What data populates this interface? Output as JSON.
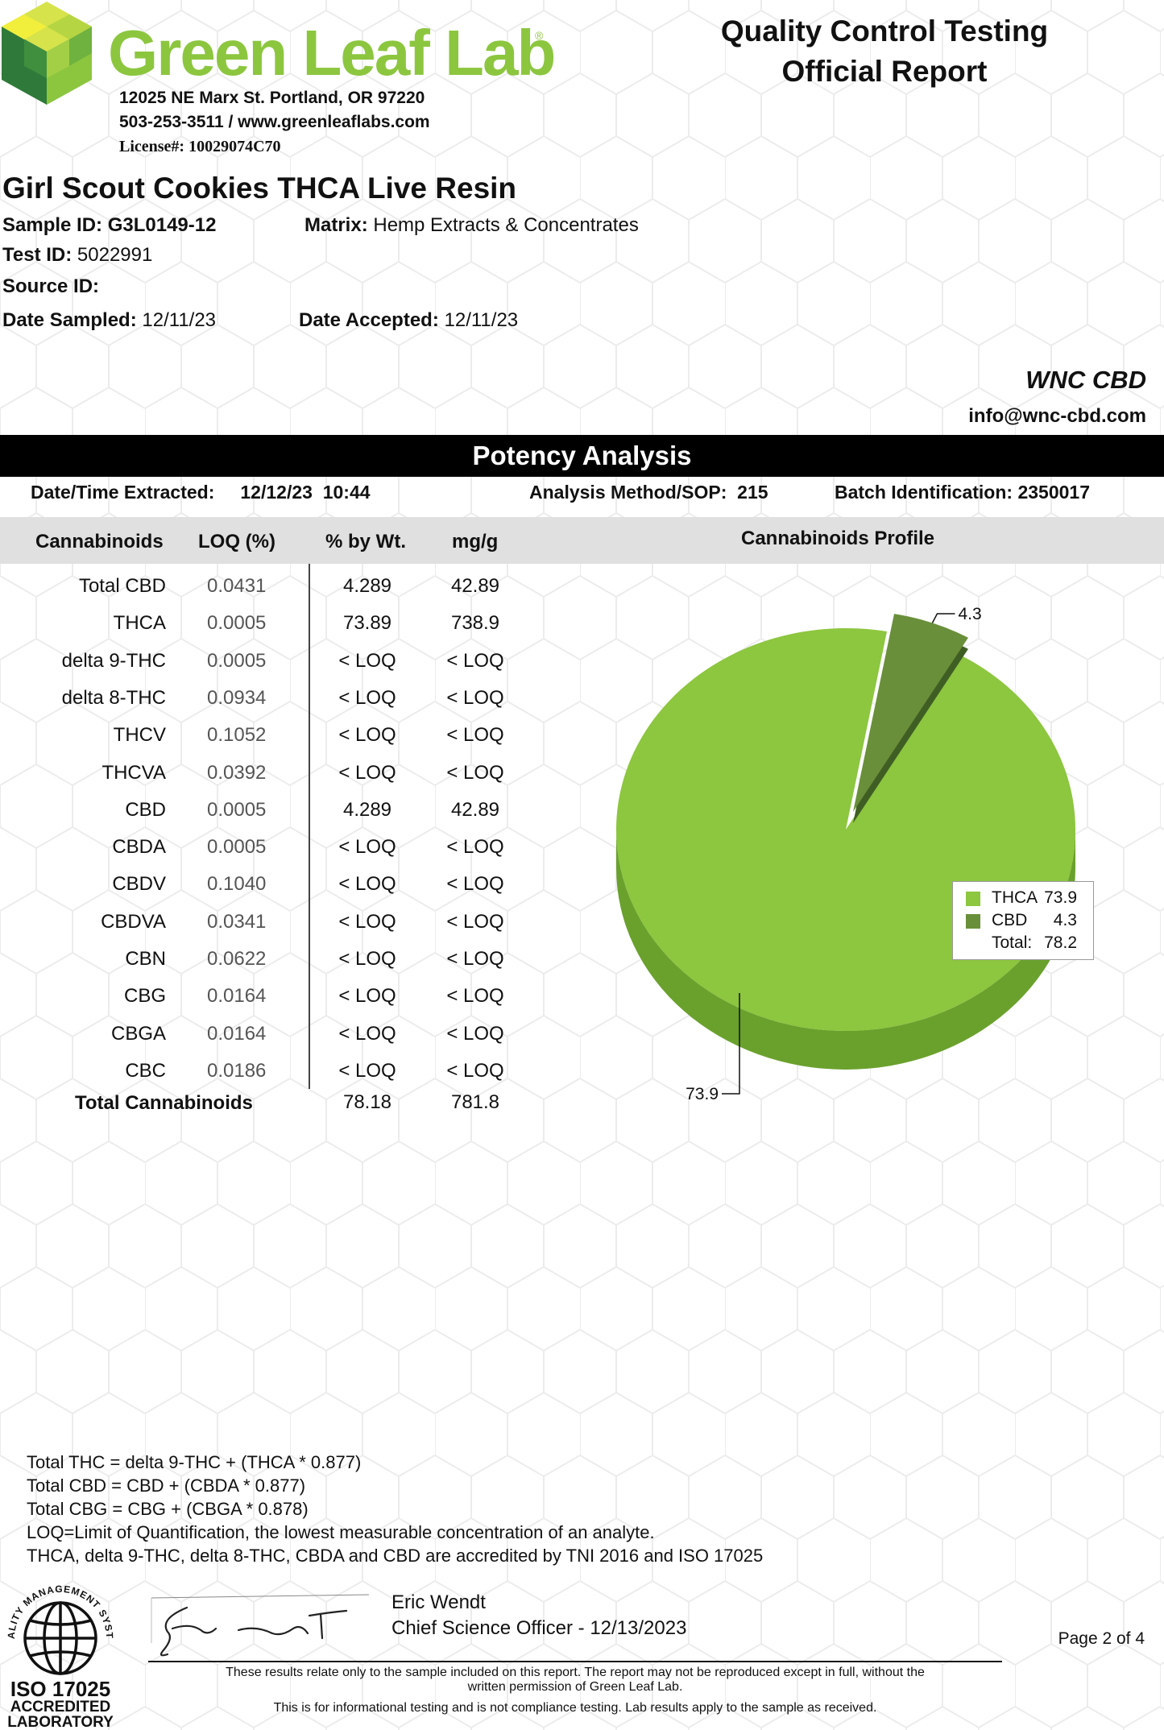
{
  "lab": {
    "name": "Green Leaf Lab",
    "address": "12025 NE Marx St. Portland, OR 97220",
    "contact": "503-253-3511 / www.greenleaflabs.com",
    "license": "License#: 10029074C70"
  },
  "report": {
    "title_line1": "Quality Control Testing",
    "title_line2": "Official Report"
  },
  "sample": {
    "product": "Girl Scout Cookies THCA Live Resin",
    "sample_id_label": "Sample ID:",
    "sample_id": "G3L0149-12",
    "matrix_label": "Matrix:",
    "matrix": "Hemp Extracts & Concentrates",
    "test_id_label": "Test ID:",
    "test_id": "5022991",
    "source_id_label": "Source ID:",
    "source_id": "",
    "date_sampled_label": "Date Sampled:",
    "date_sampled": "12/11/23",
    "date_accepted_label": "Date Accepted:",
    "date_accepted": "12/11/23"
  },
  "client": {
    "name": "WNC CBD",
    "email": "info@wnc-cbd.com"
  },
  "potency": {
    "section_title": "Potency Analysis",
    "extracted_label": "Date/Time Extracted:",
    "extracted_date": "12/12/23",
    "extracted_time": "10:44",
    "method_label": "Analysis Method/SOP:",
    "method": "215",
    "batch_label": "Batch Identification:",
    "batch": "2350017",
    "headers": {
      "cannabinoids": "Cannabinoids",
      "loq": "LOQ (%)",
      "pct": "% by Wt.",
      "mgg": "mg/g",
      "profile": "Cannabinoids Profile"
    },
    "rows": [
      {
        "name": "Total CBD",
        "loq": "0.0431",
        "pct": "4.289",
        "mgg": "42.89"
      },
      {
        "name": "THCA",
        "loq": "0.0005",
        "pct": "73.89",
        "mgg": "738.9"
      },
      {
        "name": "delta 9-THC",
        "loq": "0.0005",
        "pct": "< LOQ",
        "mgg": "< LOQ"
      },
      {
        "name": "delta 8-THC",
        "loq": "0.0934",
        "pct": "< LOQ",
        "mgg": "< LOQ"
      },
      {
        "name": "THCV",
        "loq": "0.1052",
        "pct": "< LOQ",
        "mgg": "< LOQ"
      },
      {
        "name": "THCVA",
        "loq": "0.0392",
        "pct": "< LOQ",
        "mgg": "< LOQ"
      },
      {
        "name": "CBD",
        "loq": "0.0005",
        "pct": "4.289",
        "mgg": "42.89"
      },
      {
        "name": "CBDA",
        "loq": "0.0005",
        "pct": "< LOQ",
        "mgg": "< LOQ"
      },
      {
        "name": "CBDV",
        "loq": "0.1040",
        "pct": "< LOQ",
        "mgg": "< LOQ"
      },
      {
        "name": "CBDVA",
        "loq": "0.0341",
        "pct": "< LOQ",
        "mgg": "< LOQ"
      },
      {
        "name": "CBN",
        "loq": "0.0622",
        "pct": "< LOQ",
        "mgg": "< LOQ"
      },
      {
        "name": "CBG",
        "loq": "0.0164",
        "pct": "< LOQ",
        "mgg": "< LOQ"
      },
      {
        "name": "CBGA",
        "loq": "0.0164",
        "pct": "< LOQ",
        "mgg": "< LOQ"
      },
      {
        "name": "CBC",
        "loq": "0.0186",
        "pct": "< LOQ",
        "mgg": "< LOQ"
      }
    ],
    "total": {
      "name": "Total Cannabinoids",
      "pct": "78.18",
      "mgg": "781.8"
    }
  },
  "chart_data": {
    "type": "pie",
    "title": "Cannabinoids Profile",
    "categories": [
      "THCA",
      "CBD"
    ],
    "values": [
      73.9,
      4.3
    ],
    "data_labels": [
      "73.9",
      "4.3"
    ],
    "total_label": "Total:",
    "total": 78.2,
    "legend_position": "right",
    "colors": [
      "#8dc63f",
      "#6a8f3a"
    ]
  },
  "notes": [
    "Total THC =  delta 9-THC + (THCA * 0.877)",
    "Total CBD =  CBD + (CBDA * 0.877)",
    "Total CBG = CBG + (CBGA * 0.878)",
    "LOQ=Limit of Quantification, the lowest measurable concentration of an analyte.",
    "THCA, delta 9-THC, delta 8-THC, CBDA and CBD are accredited by TNI 2016 and ISO 17025"
  ],
  "signature": {
    "name": "Eric Wendt",
    "title": "Chief Science Officer - 12/13/2023"
  },
  "footer": {
    "line1": "These results relate only to the sample included on this report. The report may not be reproduced except in full, without the",
    "line2": "written permission of Green Leaf Lab.",
    "line3": "This is for informational testing and is not compliance testing. Lab results apply to the sample as received.",
    "page": "Page 2 of 4"
  },
  "iso_badge": {
    "ring_text": "QUALITY MANAGEMENT SYSTEM",
    "line1": "ISO 17025",
    "line2": "ACCREDITED",
    "line3": "LABORATORY"
  }
}
